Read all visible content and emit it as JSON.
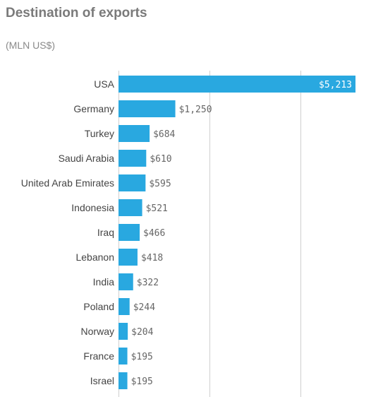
{
  "title": "Destination of exports",
  "subtitle": "(MLN US$)",
  "colors": {
    "bar": "#29a8e0",
    "grid": "#cfcfcf"
  },
  "chart_data": {
    "type": "bar",
    "orientation": "horizontal",
    "title": "Destination of exports",
    "subtitle": "(MLN US$)",
    "categories": [
      "USA",
      "Germany",
      "Turkey",
      "Saudi Arabia",
      "United Arab Emirates",
      "Indonesia",
      "Iraq",
      "Lebanon",
      "India",
      "Poland",
      "Norway",
      "France",
      "Israel"
    ],
    "values": [
      5213,
      1250,
      684,
      610,
      595,
      521,
      466,
      418,
      322,
      244,
      204,
      195,
      195
    ],
    "value_labels": [
      "$5,213",
      "$1,250",
      "$684",
      "$610",
      "$595",
      "$521",
      "$466",
      "$418",
      "$322",
      "$244",
      "$204",
      "$195",
      "$195"
    ],
    "xlim": [
      0,
      5213
    ],
    "gridlines_at": [
      0,
      2000,
      4000
    ],
    "grid": true,
    "legend": false
  }
}
